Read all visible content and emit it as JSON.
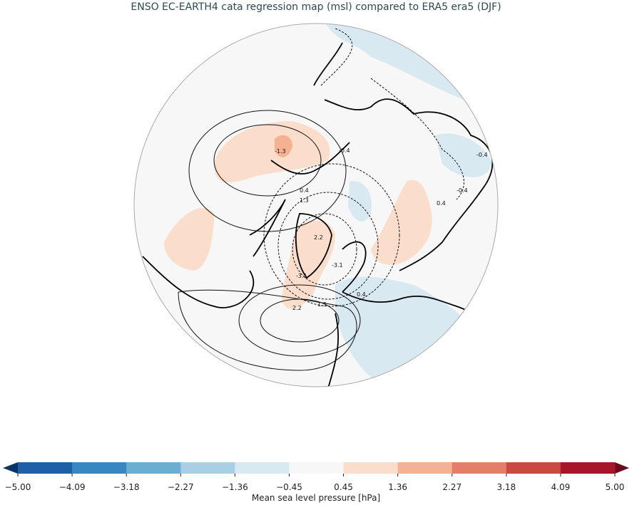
{
  "title": "ENSO EC-EARTH4 cata regression map (msl) compared to ERA5 era5 (DJF)",
  "map": {
    "projection": "north-polar-stereographic",
    "variable": "Mean sea level pressure",
    "background_color": "#f7f7f7",
    "contour_labels": [
      "0.4",
      "1.3",
      "2.2",
      "-3.1",
      "-3.1",
      "2.2",
      "1.3",
      "0.4",
      "-1.3",
      "-0.4",
      "-0.4",
      "0.4",
      "-0.4"
    ],
    "negative_contours": "dashed",
    "positive_contours": "solid"
  },
  "colorbar": {
    "label": "Mean sea level pressure [hPa]",
    "ticks": [
      "−5.00",
      "−4.09",
      "−3.18",
      "−2.27",
      "−1.36",
      "−0.45",
      "0.45",
      "1.36",
      "2.27",
      "3.18",
      "4.09",
      "5.00"
    ],
    "colors": [
      "#1f5fa6",
      "#3a86c0",
      "#6aaed3",
      "#a8d0e5",
      "#d9e9f2",
      "#f7f7f7",
      "#fbddcc",
      "#f5b293",
      "#e37f66",
      "#c94a41",
      "#a8152b"
    ],
    "under_color": "#0b3466",
    "over_color": "#6a0a1f",
    "extend": "both"
  }
}
